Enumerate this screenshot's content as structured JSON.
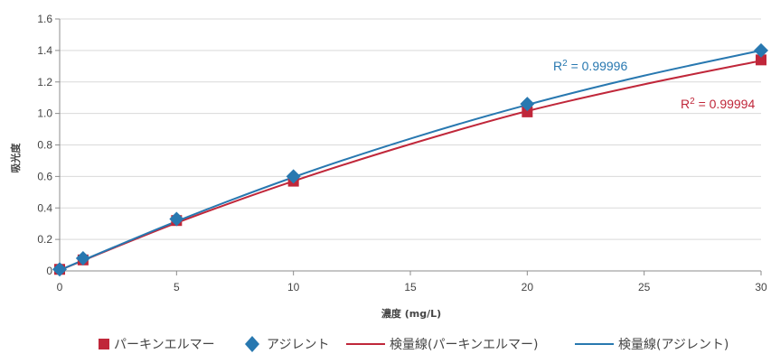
{
  "chart_data": {
    "type": "scatter",
    "title": "",
    "xlabel": "濃度 (mg/L)",
    "ylabel": "吸光度",
    "xlim": [
      0,
      30
    ],
    "ylim": [
      0,
      1.6
    ],
    "x_ticks": [
      0,
      5,
      10,
      15,
      20,
      25,
      30
    ],
    "y_ticks": [
      0,
      0.2,
      0.4,
      0.6,
      0.8,
      1.0,
      1.2,
      1.4,
      1.6
    ],
    "x_tick_labels": [
      "0",
      "5",
      "10",
      "15",
      "20",
      "25",
      "30"
    ],
    "y_tick_labels": [
      "0",
      "0.2",
      "0.4",
      "0.6",
      "0.8",
      "1.0",
      "1.2",
      "1.4",
      "1.6"
    ],
    "grid": "horizontal",
    "legend_position": "bottom",
    "series": [
      {
        "name": "パーキンエルマー",
        "marker": "square",
        "color": "#c0273a",
        "x": [
          0,
          1,
          5,
          10,
          20,
          30
        ],
        "y": [
          0.01,
          0.07,
          0.32,
          0.57,
          1.01,
          1.34
        ]
      },
      {
        "name": "アジレント",
        "marker": "diamond",
        "color": "#2878b0",
        "x": [
          0,
          1,
          5,
          10,
          20,
          30
        ],
        "y": [
          0.01,
          0.08,
          0.33,
          0.6,
          1.06,
          1.4
        ]
      }
    ],
    "fits": [
      {
        "name": "検量線(パーキンエルマー)",
        "color": "#c0273a",
        "x": [
          0,
          5,
          10,
          15,
          20,
          25,
          30
        ],
        "y": [
          0.005,
          0.305,
          0.57,
          0.805,
          1.015,
          1.185,
          1.335
        ],
        "r2_label": "R",
        "r2_sup": "2",
        "r2_value": " = 0.99994"
      },
      {
        "name": "検量線(アジレント)",
        "color": "#2878b0",
        "x": [
          0,
          5,
          10,
          15,
          20,
          25,
          30
        ],
        "y": [
          0.005,
          0.315,
          0.595,
          0.84,
          1.055,
          1.24,
          1.4
        ],
        "r2_label": "R",
        "r2_sup": "2",
        "r2_value": " = 0.99996"
      }
    ]
  }
}
